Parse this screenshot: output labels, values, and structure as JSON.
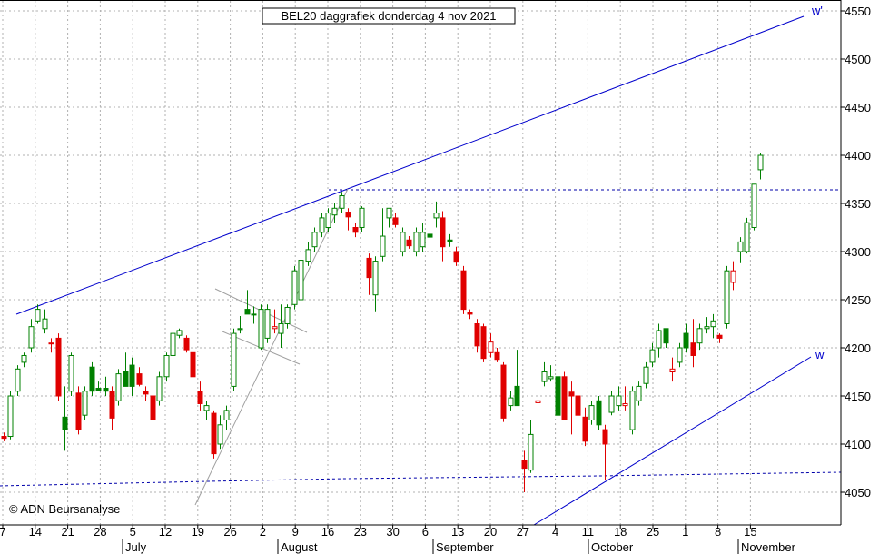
{
  "chart_data": {
    "type": "candlestick",
    "title": "BEL20 daggrafiek donderdag 4 nov 2021",
    "copyright": "© ADN Beursanalyse",
    "ylim": [
      4015,
      4565
    ],
    "yticks": [
      4050,
      4100,
      4150,
      4200,
      4250,
      4300,
      4350,
      4400,
      4450,
      4500,
      4550
    ],
    "xticks": [
      "7",
      "14",
      "21",
      "28",
      "5",
      "12",
      "19",
      "26",
      "2",
      "9",
      "16",
      "23",
      "30",
      "6",
      "13",
      "20",
      "27",
      "4",
      "11",
      "18",
      "25",
      "1",
      "8",
      "15"
    ],
    "months": [
      "July",
      "August",
      "September",
      "October",
      "November"
    ],
    "line_labels": [
      "w'",
      "w"
    ],
    "resistance_level": 4363,
    "colors": {
      "up": "#008000",
      "down": "#e00000",
      "trend": "#0000cc",
      "support": "#0000aa",
      "grid": "#b0b0b0",
      "fan": "#a0a0a0"
    },
    "candles": [
      {
        "o": 4108,
        "h": 4112,
        "l": 4103,
        "c": 4106,
        "color": "red"
      },
      {
        "o": 4108,
        "h": 4155,
        "l": 4105,
        "c": 4150,
        "color": "green"
      },
      {
        "o": 4155,
        "h": 4182,
        "l": 4150,
        "c": 4178,
        "color": "green"
      },
      {
        "o": 4185,
        "h": 4195,
        "l": 4180,
        "c": 4192,
        "color": "green"
      },
      {
        "o": 4200,
        "h": 4230,
        "l": 4195,
        "c": 4222,
        "color": "green"
      },
      {
        "o": 4228,
        "h": 4245,
        "l": 4225,
        "c": 4240,
        "color": "green"
      },
      {
        "o": 4220,
        "h": 4240,
        "l": 4215,
        "c": 4230,
        "color": "green"
      },
      {
        "o": 4205,
        "h": 4210,
        "l": 4195,
        "c": 4205,
        "color": "red"
      },
      {
        "o": 4210,
        "h": 4215,
        "l": 4145,
        "c": 4150,
        "color": "red"
      },
      {
        "o": 4128,
        "h": 4160,
        "l": 4093,
        "c": 4115,
        "color": "green"
      },
      {
        "o": 4155,
        "h": 4195,
        "l": 4150,
        "c": 4192,
        "color": "green"
      },
      {
        "o": 4153,
        "h": 4160,
        "l": 4110,
        "c": 4115,
        "color": "red"
      },
      {
        "o": 4130,
        "h": 4160,
        "l": 4125,
        "c": 4155,
        "color": "green"
      },
      {
        "o": 4180,
        "h": 4185,
        "l": 4150,
        "c": 4155,
        "color": "green"
      },
      {
        "o": 4158,
        "h": 4165,
        "l": 4155,
        "c": 4156,
        "color": "green"
      },
      {
        "o": 4158,
        "h": 4170,
        "l": 4150,
        "c": 4155,
        "color": "green"
      },
      {
        "o": 4155,
        "h": 4160,
        "l": 4115,
        "c": 4127,
        "color": "red"
      },
      {
        "o": 4145,
        "h": 4178,
        "l": 4140,
        "c": 4173,
        "color": "green"
      },
      {
        "o": 4175,
        "h": 4195,
        "l": 4160,
        "c": 4160,
        "color": "green"
      },
      {
        "o": 4182,
        "h": 4190,
        "l": 4150,
        "c": 4160,
        "color": "green"
      },
      {
        "o": 4173,
        "h": 4180,
        "l": 4160,
        "c": 4162,
        "color": "red"
      },
      {
        "o": 4155,
        "h": 4160,
        "l": 4145,
        "c": 4152,
        "color": "red"
      },
      {
        "o": 4150,
        "h": 4170,
        "l": 4120,
        "c": 4125,
        "color": "red"
      },
      {
        "o": 4145,
        "h": 4175,
        "l": 4140,
        "c": 4170,
        "color": "green"
      },
      {
        "o": 4170,
        "h": 4195,
        "l": 4165,
        "c": 4192,
        "color": "green"
      },
      {
        "o": 4192,
        "h": 4218,
        "l": 4188,
        "c": 4215,
        "color": "green"
      },
      {
        "o": 4213,
        "h": 4220,
        "l": 4210,
        "c": 4218,
        "color": "green"
      },
      {
        "o": 4210,
        "h": 4213,
        "l": 4195,
        "c": 4198,
        "color": "red"
      },
      {
        "o": 4195,
        "h": 4198,
        "l": 4165,
        "c": 4170,
        "color": "red"
      },
      {
        "o": 4155,
        "h": 4165,
        "l": 4135,
        "c": 4142,
        "color": "red"
      },
      {
        "o": 4135,
        "h": 4145,
        "l": 4125,
        "c": 4140,
        "color": "green"
      },
      {
        "o": 4132,
        "h": 4135,
        "l": 4085,
        "c": 4090,
        "color": "red"
      },
      {
        "o": 4100,
        "h": 4130,
        "l": 4095,
        "c": 4120,
        "color": "green"
      },
      {
        "o": 4125,
        "h": 4140,
        "l": 4115,
        "c": 4135,
        "color": "green"
      },
      {
        "o": 4160,
        "h": 4220,
        "l": 4155,
        "c": 4215,
        "color": "green"
      },
      {
        "o": 4219,
        "h": 4233,
        "l": 4215,
        "c": 4220,
        "color": "green"
      },
      {
        "o": 4240,
        "h": 4260,
        "l": 4235,
        "c": 4235,
        "color": "green"
      },
      {
        "o": 4235,
        "h": 4243,
        "l": 4225,
        "c": 4235,
        "color": "green"
      },
      {
        "o": 4200,
        "h": 4245,
        "l": 4198,
        "c": 4240,
        "color": "green"
      },
      {
        "o": 4210,
        "h": 4245,
        "l": 4205,
        "c": 4240,
        "color": "green"
      },
      {
        "o": 4220,
        "h": 4240,
        "l": 4215,
        "c": 4222,
        "color": "red"
      },
      {
        "o": 4215,
        "h": 4245,
        "l": 4200,
        "c": 4225,
        "color": "green"
      },
      {
        "o": 4225,
        "h": 4245,
        "l": 4220,
        "c": 4242,
        "color": "green"
      },
      {
        "o": 4245,
        "h": 4285,
        "l": 4240,
        "c": 4280,
        "color": "green"
      },
      {
        "o": 4250,
        "h": 4296,
        "l": 4240,
        "c": 4291,
        "color": "green"
      },
      {
        "o": 4290,
        "h": 4310,
        "l": 4285,
        "c": 4302,
        "color": "green"
      },
      {
        "o": 4305,
        "h": 4325,
        "l": 4300,
        "c": 4320,
        "color": "green"
      },
      {
        "o": 4320,
        "h": 4340,
        "l": 4315,
        "c": 4335,
        "color": "green"
      },
      {
        "o": 4325,
        "h": 4345,
        "l": 4320,
        "c": 4340,
        "color": "green"
      },
      {
        "o": 4338,
        "h": 4350,
        "l": 4330,
        "c": 4345,
        "color": "green"
      },
      {
        "o": 4345,
        "h": 4362,
        "l": 4340,
        "c": 4358,
        "color": "green"
      },
      {
        "o": 4341,
        "h": 4345,
        "l": 4322,
        "c": 4336,
        "color": "red"
      },
      {
        "o": 4325,
        "h": 4330,
        "l": 4315,
        "c": 4320,
        "color": "red"
      },
      {
        "o": 4325,
        "h": 4347,
        "l": 4320,
        "c": 4345,
        "color": "green"
      },
      {
        "o": 4293,
        "h": 4298,
        "l": 4255,
        "c": 4273,
        "color": "red"
      },
      {
        "o": 4255,
        "h": 4295,
        "l": 4238,
        "c": 4290,
        "color": "green"
      },
      {
        "o": 4295,
        "h": 4345,
        "l": 4290,
        "c": 4316,
        "color": "green"
      },
      {
        "o": 4335,
        "h": 4345,
        "l": 4325,
        "c": 4345,
        "color": "green"
      },
      {
        "o": 4335,
        "h": 4340,
        "l": 4325,
        "c": 4328,
        "color": "red"
      },
      {
        "o": 4300,
        "h": 4325,
        "l": 4295,
        "c": 4320,
        "color": "green"
      },
      {
        "o": 4312,
        "h": 4316,
        "l": 4303,
        "c": 4306,
        "color": "red"
      },
      {
        "o": 4300,
        "h": 4325,
        "l": 4295,
        "c": 4320,
        "color": "green"
      },
      {
        "o": 4305,
        "h": 4330,
        "l": 4300,
        "c": 4320,
        "color": "green"
      },
      {
        "o": 4318,
        "h": 4330,
        "l": 4300,
        "c": 4315,
        "color": "green"
      },
      {
        "o": 4335,
        "h": 4352,
        "l": 4325,
        "c": 4340,
        "color": "green"
      },
      {
        "o": 4335,
        "h": 4342,
        "l": 4290,
        "c": 4305,
        "color": "red"
      },
      {
        "o": 4312,
        "h": 4318,
        "l": 4305,
        "c": 4310,
        "color": "green"
      },
      {
        "o": 4300,
        "h": 4305,
        "l": 4285,
        "c": 4289,
        "color": "red"
      },
      {
        "o": 4280,
        "h": 4285,
        "l": 4235,
        "c": 4240,
        "color": "red"
      },
      {
        "o": 4237,
        "h": 4240,
        "l": 4230,
        "c": 4235,
        "color": "red"
      },
      {
        "o": 4225,
        "h": 4230,
        "l": 4195,
        "c": 4202,
        "color": "red"
      },
      {
        "o": 4222,
        "h": 4225,
        "l": 4185,
        "c": 4189,
        "color": "red"
      },
      {
        "o": 4195,
        "h": 4215,
        "l": 4190,
        "c": 4206,
        "color": "red"
      },
      {
        "o": 4195,
        "h": 4200,
        "l": 4185,
        "c": 4188,
        "color": "red"
      },
      {
        "o": 4182,
        "h": 4185,
        "l": 4123,
        "c": 4127,
        "color": "red"
      },
      {
        "o": 4140,
        "h": 4155,
        "l": 4135,
        "c": 4148,
        "color": "green"
      },
      {
        "o": 4160,
        "h": 4198,
        "l": 4140,
        "c": 4140,
        "color": "green"
      },
      {
        "o": 4083,
        "h": 4093,
        "l": 4050,
        "c": 4075,
        "color": "red"
      },
      {
        "o": 4073,
        "h": 4125,
        "l": 4070,
        "c": 4110,
        "color": "green"
      },
      {
        "o": 4143,
        "h": 4165,
        "l": 4135,
        "c": 4145,
        "color": "red"
      },
      {
        "o": 4165,
        "h": 4185,
        "l": 4160,
        "c": 4175,
        "color": "green"
      },
      {
        "o": 4168,
        "h": 4182,
        "l": 4165,
        "c": 4170,
        "color": "green"
      },
      {
        "o": 4170,
        "h": 4185,
        "l": 4130,
        "c": 4130,
        "color": "green"
      },
      {
        "o": 4170,
        "h": 4175,
        "l": 4125,
        "c": 4125,
        "color": "red"
      },
      {
        "o": 4154,
        "h": 4165,
        "l": 4110,
        "c": 4150,
        "color": "red"
      },
      {
        "o": 4150,
        "h": 4155,
        "l": 4118,
        "c": 4130,
        "color": "red"
      },
      {
        "o": 4128,
        "h": 4138,
        "l": 4098,
        "c": 4103,
        "color": "red"
      },
      {
        "o": 4125,
        "h": 4145,
        "l": 4120,
        "c": 4140,
        "color": "green"
      },
      {
        "o": 4145,
        "h": 4150,
        "l": 4115,
        "c": 4120,
        "color": "green"
      },
      {
        "o": 4115,
        "h": 4120,
        "l": 4063,
        "c": 4100,
        "color": "red"
      },
      {
        "o": 4133,
        "h": 4155,
        "l": 4130,
        "c": 4150,
        "color": "green"
      },
      {
        "o": 4140,
        "h": 4160,
        "l": 4135,
        "c": 4150,
        "color": "green"
      },
      {
        "o": 4140,
        "h": 4160,
        "l": 4135,
        "c": 4142,
        "color": "red"
      },
      {
        "o": 4115,
        "h": 4160,
        "l": 4110,
        "c": 4155,
        "color": "green"
      },
      {
        "o": 4145,
        "h": 4165,
        "l": 4140,
        "c": 4160,
        "color": "green"
      },
      {
        "o": 4163,
        "h": 4185,
        "l": 4158,
        "c": 4180,
        "color": "green"
      },
      {
        "o": 4185,
        "h": 4205,
        "l": 4180,
        "c": 4198,
        "color": "green"
      },
      {
        "o": 4200,
        "h": 4225,
        "l": 4190,
        "c": 4218,
        "color": "green"
      },
      {
        "o": 4220,
        "h": 4220,
        "l": 4200,
        "c": 4205,
        "color": "green"
      },
      {
        "o": 4175,
        "h": 4190,
        "l": 4165,
        "c": 4178,
        "color": "red"
      },
      {
        "o": 4185,
        "h": 4205,
        "l": 4180,
        "c": 4200,
        "color": "green"
      },
      {
        "o": 4215,
        "h": 4225,
        "l": 4195,
        "c": 4200,
        "color": "green"
      },
      {
        "o": 4205,
        "h": 4230,
        "l": 4180,
        "c": 4192,
        "color": "red"
      },
      {
        "o": 4205,
        "h": 4225,
        "l": 4198,
        "c": 4220,
        "color": "green"
      },
      {
        "o": 4220,
        "h": 4232,
        "l": 4215,
        "c": 4222,
        "color": "green"
      },
      {
        "o": 4222,
        "h": 4235,
        "l": 4210,
        "c": 4228,
        "color": "green"
      },
      {
        "o": 4213,
        "h": 4215,
        "l": 4205,
        "c": 4210,
        "color": "red"
      },
      {
        "o": 4225,
        "h": 4285,
        "l": 4220,
        "c": 4280,
        "color": "green"
      },
      {
        "o": 4268,
        "h": 4290,
        "l": 4260,
        "c": 4280,
        "color": "red"
      },
      {
        "o": 4300,
        "h": 4315,
        "l": 4288,
        "c": 4310,
        "color": "green"
      },
      {
        "o": 4300,
        "h": 4335,
        "l": 4298,
        "c": 4330,
        "color": "green"
      },
      {
        "o": 4325,
        "h": 4370,
        "l": 4322,
        "c": 4370,
        "color": "green"
      },
      {
        "o": 4385,
        "h": 4402,
        "l": 4375,
        "c": 4400,
        "color": "green"
      }
    ]
  }
}
